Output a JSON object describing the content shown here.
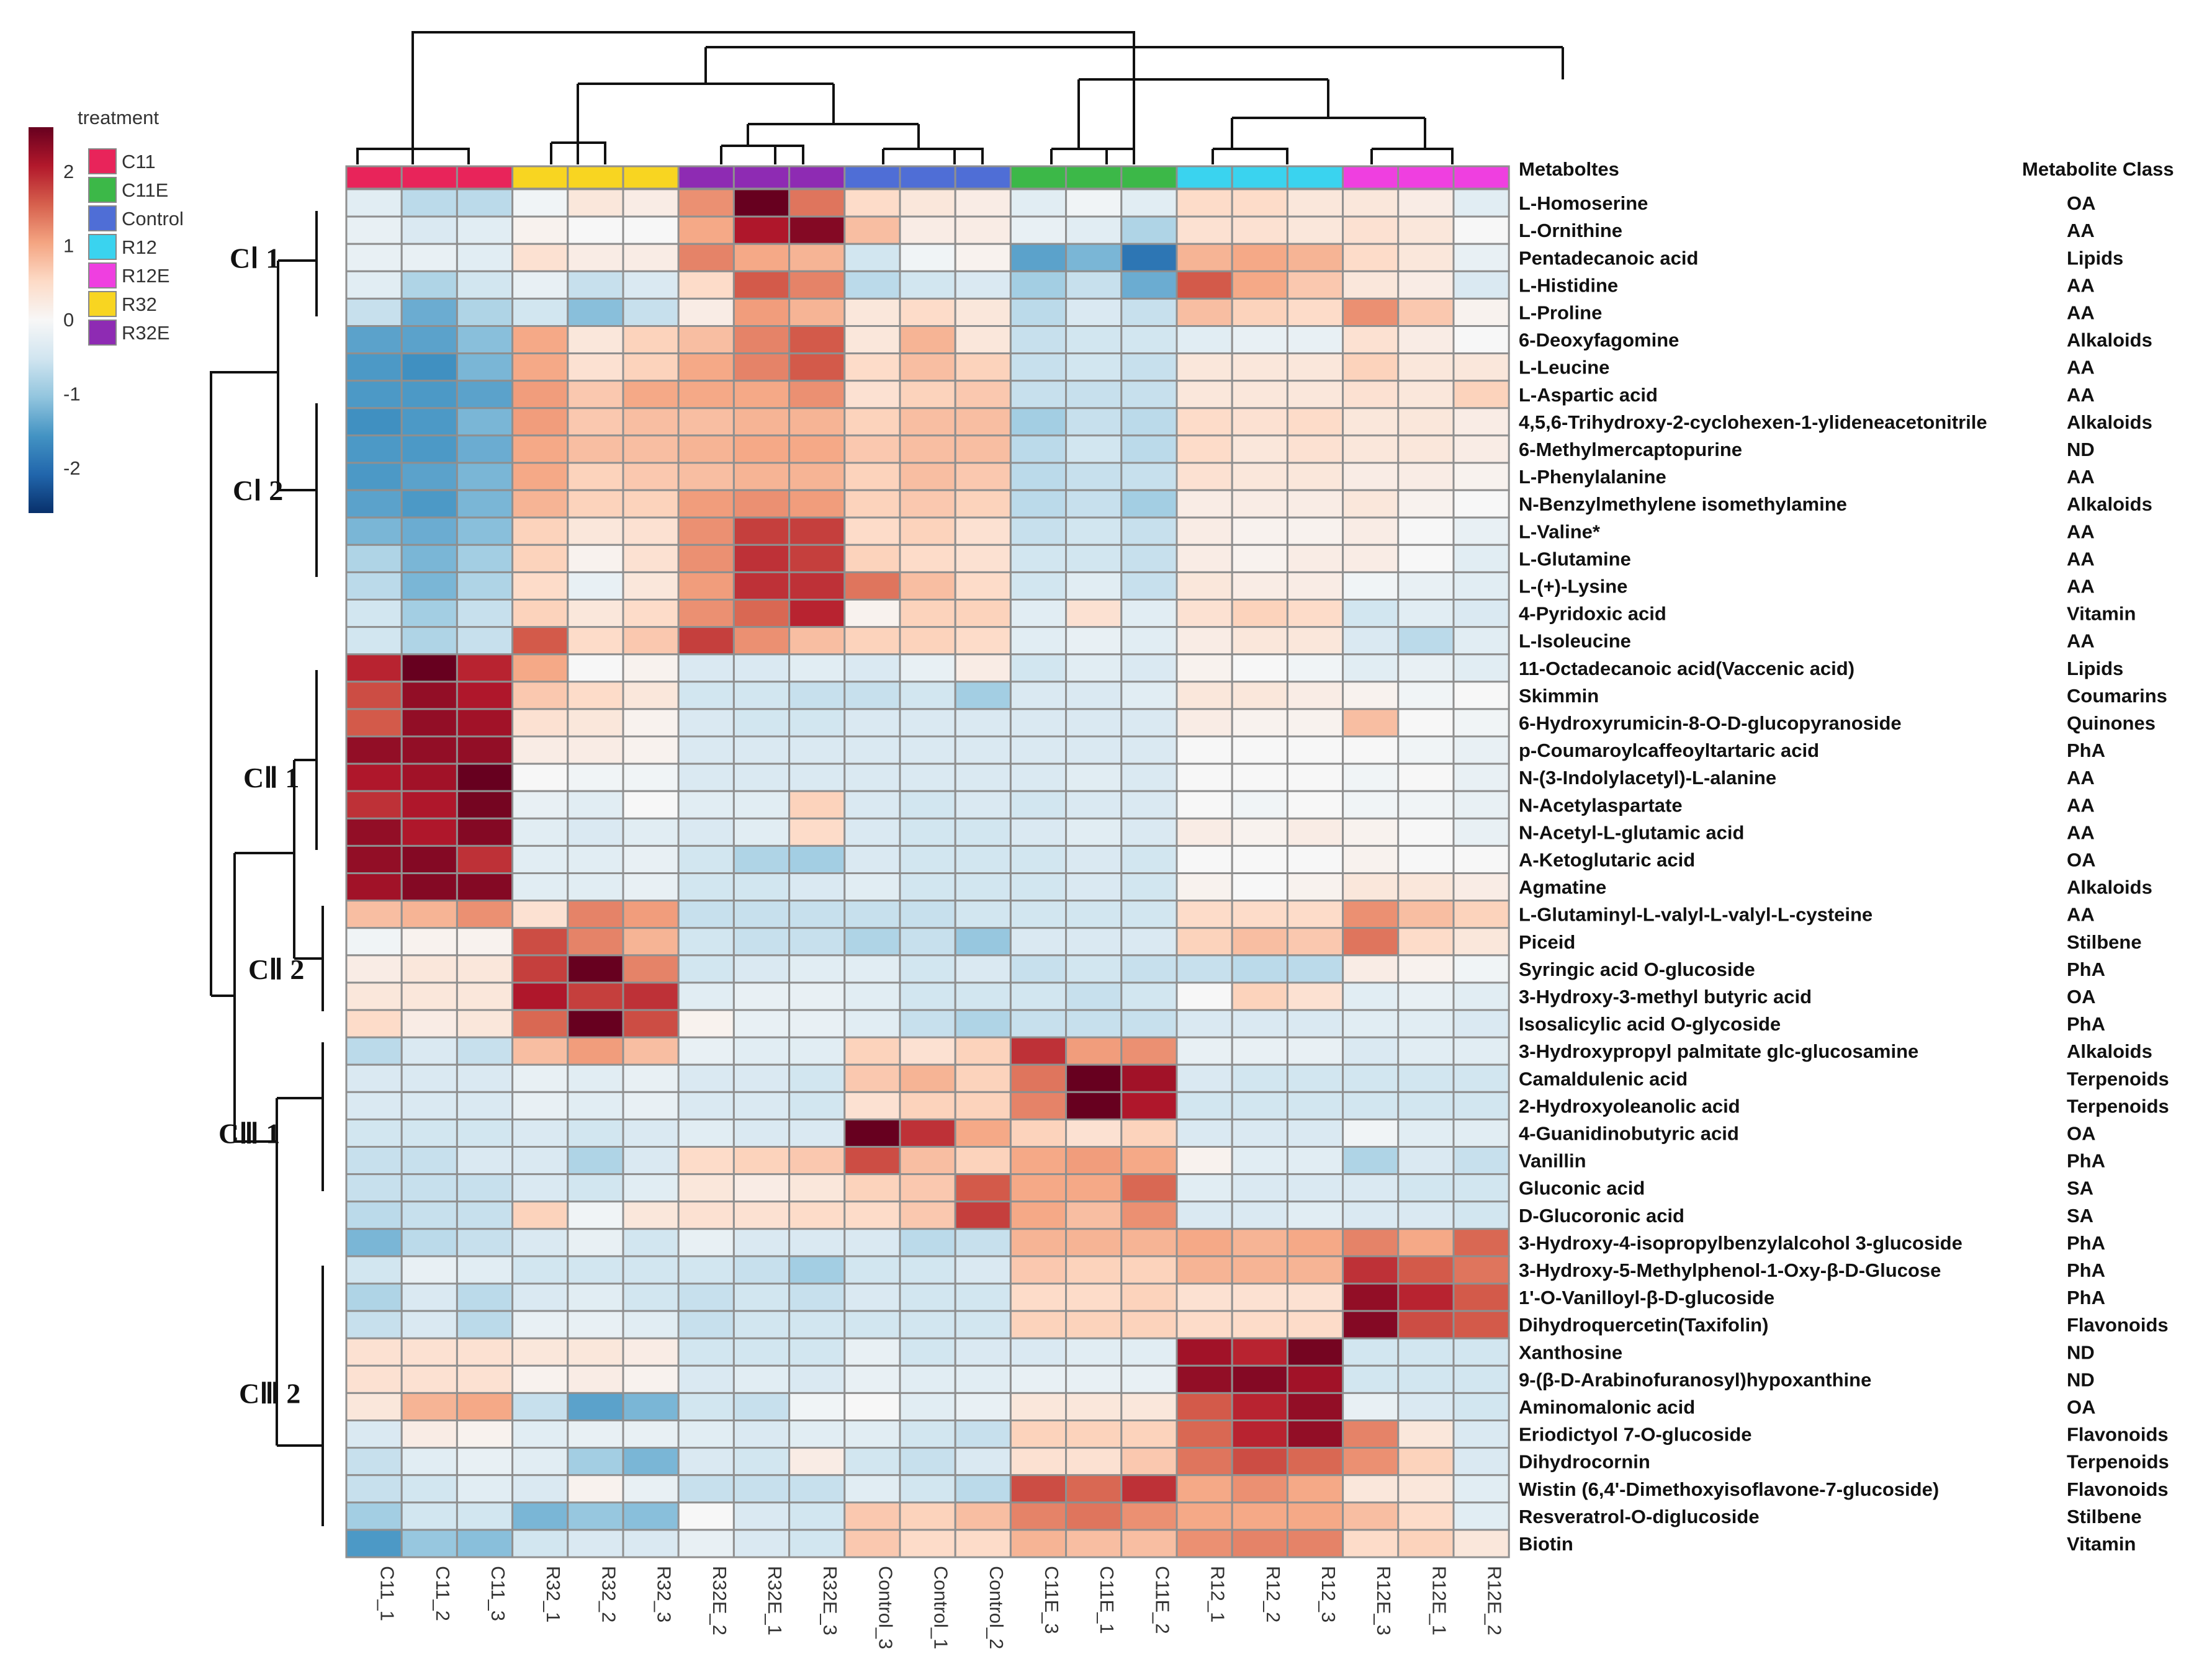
{
  "chart_data": {
    "type": "heatmap",
    "title": "",
    "row_header": "Metaboltes",
    "class_header": "Metabolite Class",
    "legend": {
      "title": "treatment",
      "entries": [
        {
          "name": "C11",
          "color": "#e8245a"
        },
        {
          "name": "C11E",
          "color": "#3cb848"
        },
        {
          "name": "Control",
          "color": "#4f6ed6"
        },
        {
          "name": "R12",
          "color": "#3ad3ef"
        },
        {
          "name": "R12E",
          "color": "#ef3fe0"
        },
        {
          "name": "R32",
          "color": "#f8d521"
        },
        {
          "name": "R32E",
          "color": "#8e2bb3"
        }
      ],
      "scale_ticks": [
        2,
        1,
        0,
        -1,
        -2
      ],
      "scale_range": [
        -2.6,
        2.6
      ]
    },
    "color_scale": [
      "#08306b",
      "#2166ac",
      "#4393c3",
      "#92c5de",
      "#d1e5f0",
      "#f7f7f7",
      "#fddbc7",
      "#f4a582",
      "#d6604d",
      "#b2182b",
      "#67001f"
    ],
    "columns": [
      "C11_1",
      "C11_2",
      "C11_3",
      "R32_1",
      "R32_2",
      "R32_3",
      "R32E_2",
      "R32E_1",
      "R32E_3",
      "Control_3",
      "Control_1",
      "Control_2",
      "C11E_3",
      "C11E_1",
      "C11E_2",
      "R12_1",
      "R12_2",
      "R12_3",
      "R12E_3",
      "R12E_1",
      "R12E_2"
    ],
    "column_groups": [
      "C11",
      "C11",
      "C11",
      "R32",
      "R32",
      "R32",
      "R32E",
      "R32E",
      "R32E",
      "Control",
      "Control",
      "Control",
      "C11E",
      "C11E",
      "C11E",
      "R12",
      "R12",
      "R12",
      "R12E",
      "R12E",
      "R12E"
    ],
    "rows": [
      "L-Homoserine",
      "L-Ornithine",
      "Pentadecanoic acid",
      "L-Histidine",
      "L-Proline",
      "6-Deoxyfagomine",
      "L-Leucine",
      "L-Aspartic acid",
      "4,5,6-Trihydroxy-2-cyclohexen-1-ylideneacetonitrile",
      "6-Methylmercaptopurine",
      "L-Phenylalanine",
      "N-Benzylmethylene isomethylamine",
      "L-Valine*",
      "L-Glutamine",
      "L-(+)-Lysine",
      "4-Pyridoxic acid",
      "L-Isoleucine",
      "11-Octadecanoic acid(Vaccenic acid)",
      "Skimmin",
      "6-Hydroxyrumicin-8-O-D-glucopyranoside",
      "p-Coumaroylcaffeoyltartaric acid",
      "N-(3-Indolylacetyl)-L-alanine",
      "N-Acetylaspartate",
      "N-Acetyl-L-glutamic acid",
      "A-Ketoglutaric acid",
      "Agmatine",
      "L-Glutaminyl-L-valyl-L-valyl-L-cysteine",
      "Piceid",
      "Syringic acid O-glucoside",
      "3-Hydroxy-3-methyl butyric acid",
      "Isosalicylic acid O-glycoside",
      "3-Hydroxypropyl palmitate glc-glucosamine",
      "Camaldulenic acid",
      "2-Hydroxyoleanolic acid",
      "4-Guanidinobutyric acid",
      "Vanillin",
      "Gluconic acid",
      "D-Glucoronic acid",
      "3-Hydroxy-4-isopropylbenzylalcohol 3-glucoside",
      "3-Hydroxy-5-Methylphenol-1-Oxy-β-D-Glucose",
      "1'-O-Vanilloyl-β-D-glucoside",
      "Dihydroquercetin(Taxifolin)",
      "Xanthosine",
      "9-(β-D-Arabinofuranosyl)hypoxanthine",
      "Aminomalonic acid",
      "Eriodictyol 7-O-glucoside",
      "Dihydrocornin",
      "Wistin (6,4'-Dimethoxyisoflavone-7-glucoside)",
      "Resveratrol-O-diglucoside",
      "Biotin"
    ],
    "classes": [
      "OA",
      "AA",
      "Lipids",
      "AA",
      "AA",
      "Alkaloids",
      "AA",
      "AA",
      "Alkaloids",
      "ND",
      "AA",
      "Alkaloids",
      "AA",
      "AA",
      "AA",
      "Vitamin",
      "AA",
      "Lipids",
      "Coumarins",
      "Quinones",
      "PhA",
      "AA",
      "AA",
      "AA",
      "OA",
      "Alkaloids",
      "AA",
      "Stilbene",
      "PhA",
      "OA",
      "PhA",
      "Alkaloids",
      "Terpenoids",
      "Terpenoids",
      "OA",
      "PhA",
      "SA",
      "SA",
      "PhA",
      "PhA",
      "PhA",
      "Flavonoids",
      "ND",
      "ND",
      "OA",
      "Flavonoids",
      "Terpenoids",
      "Flavonoids",
      "Stilbene",
      "Vitamin"
    ],
    "row_clusters": [
      {
        "label": "CⅠ 1",
        "rows": [
          0,
          4
        ]
      },
      {
        "label": "CⅠ 2",
        "rows": [
          5,
          16
        ]
      },
      {
        "label": "CⅡ 1",
        "rows": [
          17,
          25
        ]
      },
      {
        "label": "CⅡ 2",
        "rows": [
          26,
          30
        ]
      },
      {
        "label": "CⅢ 1",
        "rows": [
          31,
          37
        ]
      },
      {
        "label": "CⅢ 2",
        "rows": [
          38,
          49
        ]
      }
    ],
    "values": [
      [
        -0.3,
        -0.7,
        -0.7,
        -0.1,
        0.3,
        0.2,
        1.2,
        2.6,
        1.4,
        0.5,
        0.3,
        0.2,
        -0.3,
        -0.1,
        -0.3,
        0.5,
        0.5,
        0.3,
        0.3,
        0.2,
        -0.3
      ],
      [
        -0.2,
        -0.4,
        -0.3,
        0.1,
        0.0,
        0.0,
        1.0,
        2.1,
        2.4,
        0.8,
        0.2,
        0.2,
        -0.2,
        -0.3,
        -0.8,
        0.4,
        0.4,
        0.3,
        0.4,
        0.3,
        0.0
      ],
      [
        -0.2,
        -0.2,
        -0.3,
        0.4,
        0.2,
        0.2,
        1.3,
        1.0,
        0.9,
        -0.5,
        -0.1,
        0.1,
        -1.4,
        -1.2,
        -1.9,
        0.9,
        1.0,
        0.9,
        0.5,
        0.3,
        -0.2
      ],
      [
        -0.3,
        -0.8,
        -0.5,
        -0.2,
        -0.6,
        -0.4,
        0.5,
        1.6,
        1.3,
        -0.7,
        -0.5,
        -0.4,
        -0.9,
        -0.6,
        -1.3,
        1.6,
        1.0,
        0.7,
        0.3,
        0.2,
        -0.4
      ],
      [
        -0.6,
        -1.3,
        -0.8,
        -0.5,
        -1.1,
        -0.6,
        0.2,
        1.1,
        0.9,
        0.3,
        0.5,
        0.3,
        -0.7,
        -0.4,
        -0.6,
        0.8,
        0.6,
        0.5,
        1.2,
        0.7,
        0.1
      ],
      [
        -1.4,
        -1.4,
        -1.1,
        1.0,
        0.3,
        0.6,
        0.8,
        1.3,
        1.6,
        0.3,
        0.9,
        0.3,
        -0.6,
        -0.5,
        -0.5,
        -0.3,
        -0.2,
        -0.2,
        0.4,
        0.2,
        0.0
      ],
      [
        -1.5,
        -1.6,
        -1.2,
        1.0,
        0.4,
        0.6,
        1.0,
        1.3,
        1.6,
        0.5,
        0.8,
        0.6,
        -0.6,
        -0.5,
        -0.6,
        0.3,
        0.3,
        0.3,
        0.6,
        0.3,
        0.3
      ],
      [
        -1.5,
        -1.5,
        -1.4,
        1.1,
        0.7,
        1.0,
        1.0,
        1.0,
        1.2,
        0.4,
        0.6,
        0.7,
        -0.6,
        -0.6,
        -0.6,
        0.3,
        0.3,
        0.3,
        0.4,
        0.3,
        0.6
      ],
      [
        -1.6,
        -1.5,
        -1.2,
        1.1,
        0.7,
        0.8,
        0.8,
        0.9,
        0.9,
        0.6,
        0.8,
        0.8,
        -0.9,
        -0.6,
        -0.7,
        0.5,
        0.4,
        0.5,
        0.3,
        0.3,
        0.2
      ],
      [
        -1.5,
        -1.5,
        -1.3,
        1.0,
        0.8,
        0.8,
        0.9,
        1.0,
        1.0,
        0.7,
        0.8,
        0.8,
        -0.7,
        -0.5,
        -0.7,
        0.5,
        0.3,
        0.4,
        0.3,
        0.3,
        0.2
      ],
      [
        -1.5,
        -1.4,
        -1.2,
        1.0,
        0.6,
        0.7,
        0.8,
        0.9,
        0.9,
        0.6,
        0.8,
        0.7,
        -0.7,
        -0.6,
        -0.6,
        0.4,
        0.3,
        0.3,
        0.2,
        0.2,
        0.1
      ],
      [
        -1.4,
        -1.5,
        -1.2,
        0.9,
        0.6,
        0.6,
        1.1,
        1.2,
        1.1,
        0.6,
        0.7,
        0.6,
        -0.7,
        -0.6,
        -0.9,
        0.2,
        0.2,
        0.2,
        0.3,
        0.1,
        0.0
      ],
      [
        -1.2,
        -1.3,
        -1.1,
        0.6,
        0.3,
        0.4,
        1.2,
        1.8,
        1.8,
        0.5,
        0.6,
        0.4,
        -0.6,
        -0.5,
        -0.6,
        0.2,
        0.1,
        0.1,
        0.2,
        0.0,
        -0.2
      ],
      [
        -0.8,
        -1.2,
        -0.9,
        0.6,
        0.1,
        0.4,
        1.2,
        1.9,
        1.8,
        0.6,
        0.5,
        0.4,
        -0.5,
        -0.5,
        -0.6,
        0.2,
        0.1,
        0.2,
        0.2,
        0.0,
        -0.3
      ],
      [
        -0.7,
        -1.2,
        -0.8,
        0.5,
        -0.2,
        0.3,
        1.1,
        1.9,
        1.9,
        1.4,
        0.8,
        0.5,
        -0.5,
        -0.3,
        -0.6,
        0.3,
        0.2,
        0.2,
        -0.1,
        -0.2,
        -0.3
      ],
      [
        -0.5,
        -0.9,
        -0.6,
        0.6,
        0.3,
        0.5,
        1.2,
        1.5,
        2.0,
        0.1,
        0.6,
        0.6,
        -0.3,
        0.4,
        -0.3,
        0.4,
        0.6,
        0.5,
        -0.5,
        -0.3,
        -0.4
      ],
      [
        -0.5,
        -0.8,
        -0.6,
        1.6,
        0.5,
        0.7,
        1.8,
        1.2,
        0.8,
        0.6,
        0.6,
        0.5,
        -0.3,
        -0.2,
        -0.3,
        0.2,
        0.3,
        0.3,
        -0.4,
        -0.7,
        -0.3
      ],
      [
        2.0,
        2.6,
        2.0,
        1.0,
        0.0,
        0.1,
        -0.4,
        -0.4,
        -0.3,
        -0.4,
        -0.2,
        0.2,
        -0.5,
        -0.3,
        -0.4,
        0.1,
        0.0,
        -0.1,
        -0.3,
        -0.2,
        -0.3
      ],
      [
        1.7,
        2.3,
        2.1,
        0.7,
        0.5,
        0.3,
        -0.5,
        -0.5,
        -0.6,
        -0.6,
        -0.5,
        -0.9,
        -0.4,
        -0.4,
        -0.3,
        0.3,
        0.3,
        0.2,
        0.1,
        -0.1,
        0.0
      ],
      [
        1.6,
        2.3,
        2.2,
        0.4,
        0.3,
        0.1,
        -0.4,
        -0.5,
        -0.5,
        -0.4,
        -0.4,
        -0.4,
        -0.4,
        -0.4,
        -0.4,
        0.2,
        0.1,
        0.1,
        0.8,
        0.0,
        -0.1
      ],
      [
        2.3,
        2.3,
        2.3,
        0.2,
        0.2,
        0.1,
        -0.4,
        -0.4,
        -0.4,
        -0.4,
        -0.4,
        -0.4,
        -0.4,
        -0.4,
        -0.4,
        0.0,
        0.0,
        0.0,
        0.0,
        -0.1,
        -0.2
      ],
      [
        2.1,
        2.2,
        2.6,
        0.0,
        -0.1,
        -0.1,
        -0.4,
        -0.4,
        -0.4,
        -0.4,
        -0.4,
        -0.4,
        -0.4,
        -0.3,
        -0.4,
        0.0,
        0.0,
        0.0,
        -0.1,
        0.0,
        -0.2
      ],
      [
        1.9,
        2.1,
        2.5,
        -0.2,
        -0.3,
        0.0,
        -0.3,
        -0.3,
        0.6,
        -0.4,
        -0.5,
        -0.4,
        -0.5,
        -0.4,
        -0.4,
        0.0,
        -0.1,
        0.0,
        -0.1,
        -0.1,
        -0.2
      ],
      [
        2.3,
        2.1,
        2.4,
        -0.3,
        -0.4,
        -0.3,
        -0.4,
        -0.3,
        0.5,
        -0.4,
        -0.5,
        -0.5,
        -0.4,
        -0.3,
        -0.4,
        0.2,
        0.1,
        0.2,
        0.1,
        0.0,
        -0.2
      ],
      [
        2.3,
        2.4,
        1.9,
        -0.3,
        -0.3,
        -0.2,
        -0.5,
        -0.8,
        -0.9,
        -0.4,
        -0.5,
        -0.5,
        -0.5,
        -0.4,
        -0.5,
        0.0,
        0.0,
        0.0,
        0.1,
        0.0,
        0.0
      ],
      [
        2.2,
        2.4,
        2.4,
        -0.3,
        -0.3,
        -0.2,
        -0.5,
        -0.5,
        -0.4,
        -0.3,
        -0.5,
        -0.5,
        -0.5,
        -0.4,
        -0.5,
        0.1,
        0.0,
        0.1,
        0.3,
        0.3,
        0.2
      ],
      [
        0.8,
        0.9,
        1.2,
        0.4,
        1.3,
        1.1,
        -0.6,
        -0.6,
        -0.6,
        -0.6,
        -0.6,
        -0.5,
        -0.5,
        -0.5,
        -0.5,
        0.5,
        0.5,
        0.5,
        1.2,
        0.8,
        0.6
      ],
      [
        -0.1,
        0.1,
        0.1,
        1.7,
        1.3,
        0.9,
        -0.5,
        -0.6,
        -0.6,
        -0.8,
        -0.6,
        -1.0,
        -0.4,
        -0.4,
        -0.4,
        0.6,
        0.8,
        0.7,
        1.4,
        0.5,
        0.3
      ],
      [
        0.2,
        0.3,
        0.3,
        1.8,
        2.7,
        1.3,
        -0.5,
        -0.4,
        -0.3,
        -0.3,
        -0.5,
        -0.4,
        -0.6,
        -0.5,
        -0.6,
        -0.6,
        -0.7,
        -0.7,
        0.2,
        0.1,
        -0.1
      ],
      [
        0.3,
        0.3,
        0.3,
        2.1,
        1.8,
        1.9,
        -0.3,
        -0.2,
        -0.2,
        -0.3,
        -0.5,
        -0.5,
        -0.5,
        -0.6,
        -0.5,
        0.0,
        0.6,
        0.4,
        -0.3,
        -0.2,
        -0.3
      ],
      [
        0.5,
        0.2,
        0.3,
        1.5,
        2.6,
        1.7,
        0.1,
        -0.2,
        -0.2,
        -0.3,
        -0.6,
        -0.8,
        -0.6,
        -0.6,
        -0.6,
        -0.4,
        -0.4,
        -0.4,
        -0.3,
        -0.3,
        -0.4
      ],
      [
        -0.7,
        -0.4,
        -0.6,
        0.8,
        1.1,
        0.8,
        -0.2,
        -0.3,
        -0.3,
        0.6,
        0.4,
        0.6,
        1.9,
        1.1,
        1.2,
        -0.2,
        -0.2,
        -0.2,
        -0.4,
        -0.3,
        -0.3
      ],
      [
        -0.4,
        -0.4,
        -0.4,
        -0.2,
        -0.3,
        -0.2,
        -0.4,
        -0.4,
        -0.5,
        0.7,
        0.9,
        0.6,
        1.4,
        2.7,
        2.2,
        -0.4,
        -0.5,
        -0.5,
        -0.5,
        -0.5,
        -0.5
      ],
      [
        -0.4,
        -0.4,
        -0.4,
        -0.2,
        -0.3,
        -0.2,
        -0.4,
        -0.4,
        -0.5,
        0.4,
        0.6,
        0.6,
        1.3,
        2.6,
        2.1,
        -0.5,
        -0.5,
        -0.5,
        -0.5,
        -0.5,
        -0.5
      ],
      [
        -0.5,
        -0.5,
        -0.5,
        -0.4,
        -0.5,
        -0.4,
        -0.3,
        -0.4,
        -0.4,
        2.6,
        1.9,
        1.0,
        0.6,
        0.4,
        0.6,
        -0.4,
        -0.4,
        -0.4,
        -0.1,
        -0.3,
        -0.3
      ],
      [
        -0.6,
        -0.6,
        -0.4,
        -0.4,
        -0.8,
        -0.4,
        0.5,
        0.6,
        0.7,
        1.7,
        0.8,
        0.6,
        1.0,
        1.1,
        1.0,
        0.1,
        -0.3,
        -0.3,
        -0.8,
        -0.4,
        -0.6
      ],
      [
        -0.6,
        -0.6,
        -0.6,
        -0.4,
        -0.5,
        -0.3,
        0.3,
        0.2,
        0.3,
        0.6,
        0.7,
        1.6,
        1.0,
        1.0,
        1.5,
        -0.3,
        -0.4,
        -0.4,
        -0.4,
        -0.5,
        -0.5
      ],
      [
        -0.7,
        -0.6,
        -0.6,
        0.6,
        -0.1,
        0.3,
        0.4,
        0.4,
        0.5,
        0.5,
        0.7,
        1.8,
        1.0,
        0.8,
        1.2,
        -0.4,
        -0.4,
        -0.3,
        -0.4,
        -0.4,
        -0.5
      ],
      [
        -1.2,
        -0.7,
        -0.6,
        -0.4,
        -0.2,
        -0.5,
        -0.2,
        -0.4,
        -0.4,
        -0.4,
        -0.7,
        -0.6,
        0.9,
        0.9,
        0.9,
        1.0,
        0.9,
        1.0,
        1.3,
        1.0,
        1.5
      ],
      [
        -0.5,
        -0.2,
        -0.3,
        -0.5,
        -0.5,
        -0.5,
        -0.5,
        -0.6,
        -0.9,
        -0.5,
        -0.5,
        -0.4,
        0.7,
        0.6,
        0.6,
        0.9,
        0.9,
        0.9,
        1.9,
        1.6,
        1.4
      ],
      [
        -0.8,
        -0.4,
        -0.7,
        -0.4,
        -0.3,
        -0.5,
        -0.6,
        -0.5,
        -0.6,
        -0.4,
        -0.5,
        -0.5,
        0.5,
        0.5,
        0.6,
        0.4,
        0.4,
        0.4,
        2.3,
        2.0,
        1.6
      ],
      [
        -0.6,
        -0.4,
        -0.7,
        -0.2,
        -0.2,
        -0.3,
        -0.6,
        -0.5,
        -0.5,
        -0.5,
        -0.5,
        -0.5,
        0.6,
        0.6,
        0.6,
        0.5,
        0.5,
        0.5,
        2.4,
        1.7,
        1.6
      ],
      [
        0.4,
        0.4,
        0.4,
        0.3,
        0.3,
        0.2,
        -0.5,
        -0.5,
        -0.5,
        -0.2,
        -0.5,
        -0.4,
        -0.4,
        -0.3,
        -0.3,
        2.2,
        2.0,
        2.5,
        -0.5,
        -0.5,
        -0.5
      ],
      [
        0.4,
        0.4,
        0.4,
        0.1,
        0.2,
        0.1,
        -0.4,
        -0.3,
        -0.4,
        -0.2,
        -0.3,
        -0.3,
        -0.2,
        -0.2,
        -0.2,
        2.3,
        2.4,
        2.2,
        -0.5,
        -0.5,
        -0.5
      ],
      [
        0.3,
        0.9,
        1.0,
        -0.6,
        -1.4,
        -1.2,
        -0.5,
        -0.6,
        -0.1,
        0.0,
        -0.3,
        -0.2,
        0.3,
        0.3,
        0.3,
        1.6,
        2.0,
        2.3,
        -0.2,
        -0.4,
        -0.5
      ],
      [
        -0.4,
        0.2,
        0.1,
        -0.3,
        -0.2,
        -0.2,
        -0.3,
        -0.4,
        -0.3,
        -0.3,
        -0.5,
        -0.6,
        0.6,
        0.6,
        0.6,
        1.5,
        2.0,
        2.3,
        1.3,
        0.3,
        -0.4
      ],
      [
        -0.6,
        -0.3,
        -0.2,
        -0.3,
        -0.9,
        -1.2,
        -0.4,
        -0.5,
        0.2,
        -0.5,
        -0.6,
        -0.4,
        0.4,
        0.4,
        0.7,
        1.4,
        1.7,
        1.5,
        1.2,
        0.6,
        -0.4
      ],
      [
        -0.6,
        -0.5,
        -0.3,
        -0.4,
        0.1,
        -0.2,
        -0.6,
        -0.6,
        -0.6,
        -0.3,
        -0.5,
        -0.7,
        1.7,
        1.5,
        1.9,
        1.0,
        1.2,
        1.0,
        0.3,
        0.3,
        -0.3
      ],
      [
        -0.9,
        -0.5,
        -0.5,
        -1.2,
        -1.0,
        -1.1,
        0.0,
        -0.4,
        -0.5,
        0.7,
        0.6,
        0.8,
        1.3,
        1.4,
        1.2,
        1.0,
        1.0,
        1.0,
        0.8,
        0.5,
        -0.3
      ],
      [
        -1.5,
        -1.0,
        -1.1,
        -0.5,
        -0.4,
        -0.4,
        -0.2,
        -0.4,
        -0.5,
        0.7,
        0.5,
        0.5,
        0.9,
        0.8,
        0.8,
        1.2,
        1.3,
        1.3,
        0.5,
        0.6,
        0.3
      ]
    ]
  }
}
